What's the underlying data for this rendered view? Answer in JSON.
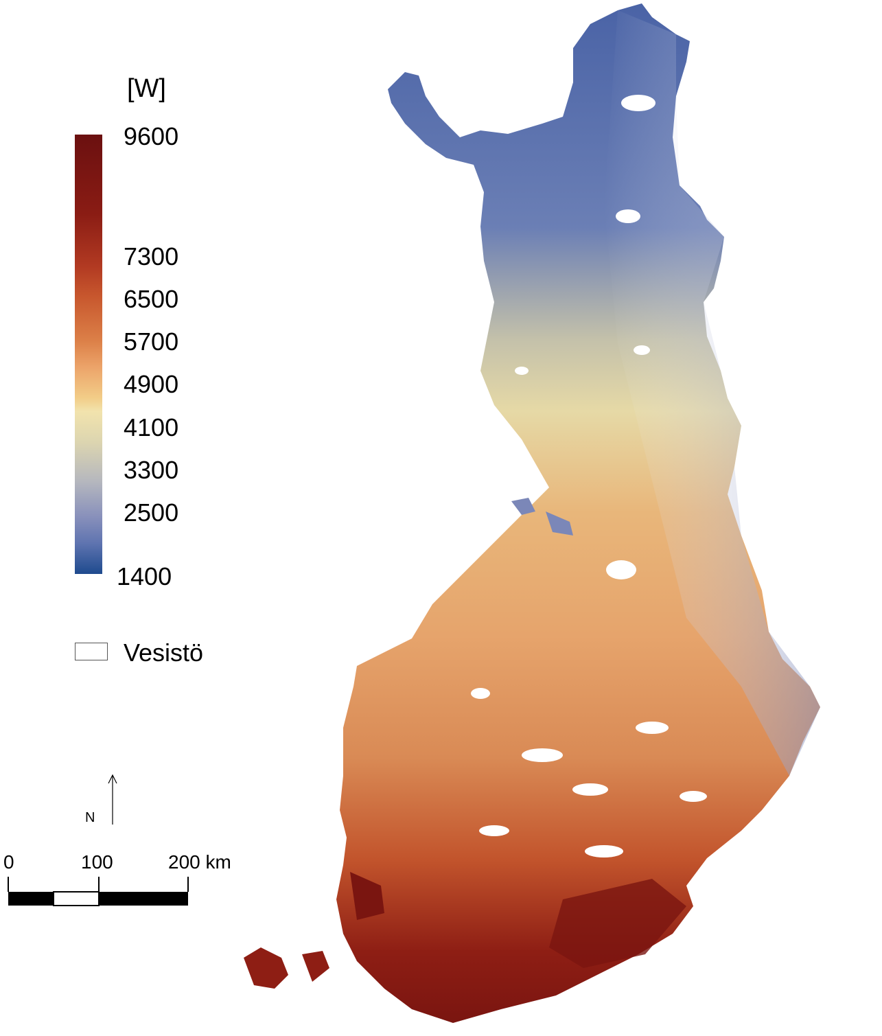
{
  "legend": {
    "unit": "[W]",
    "ticks": [
      "9600",
      "7300",
      "6500",
      "5700",
      "4900",
      "4100",
      "3300",
      "2500",
      "1400"
    ],
    "water_label": "Vesistö"
  },
  "north_arrow": {
    "label": "N"
  },
  "scale_bar": {
    "labels": [
      "0",
      "100",
      "200 km"
    ]
  },
  "colors": {
    "max": "#6b1010",
    "high": "#c8582e",
    "mid": "#f2e3ad",
    "low": "#8890bb",
    "min": "#1e4a8e",
    "water": "#ffffff"
  }
}
